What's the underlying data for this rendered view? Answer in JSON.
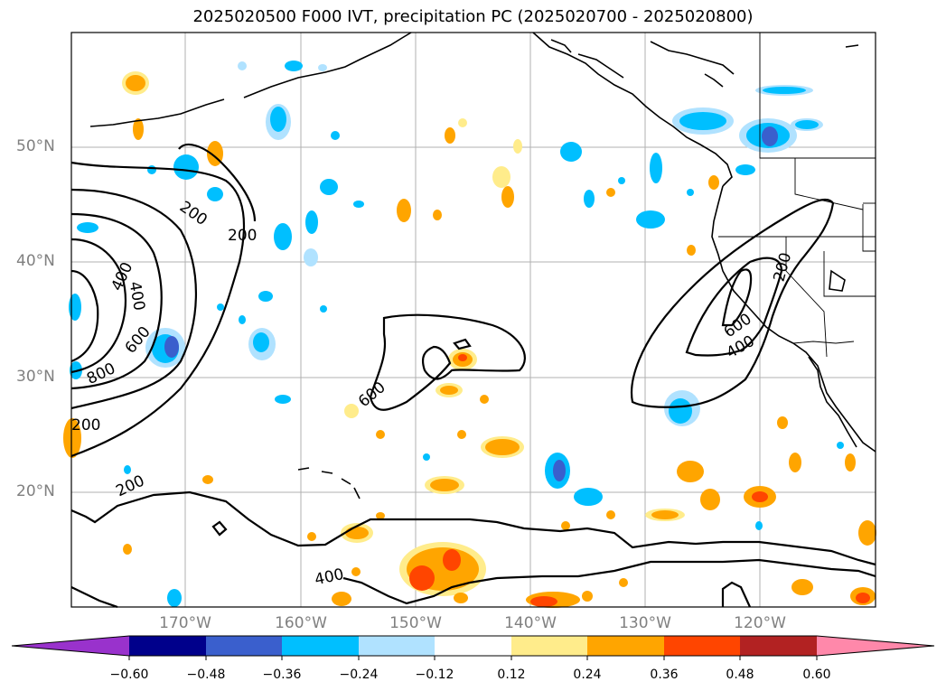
{
  "title": "2025020500 F000 IVT, precipitation PC (2025020700 - 2025020800)",
  "lat_labels": [
    "50°N",
    "40°N",
    "30°N",
    "20°N"
  ],
  "lon_labels": [
    "170°W",
    "160°W",
    "150°W",
    "140°W",
    "130°W",
    "120°W"
  ],
  "contour_labels": [
    "200",
    "200",
    "200",
    "400",
    "400",
    "400",
    "600",
    "600",
    "600",
    "800",
    "200",
    "200",
    "400"
  ],
  "colorbar": {
    "ticks": [
      "−0.60",
      "−0.48",
      "−0.36",
      "−0.24",
      "−0.12",
      "0.12",
      "0.24",
      "0.36",
      "0.48",
      "0.60"
    ],
    "colors": [
      "#9932cc",
      "#00008b",
      "#3a5fcd",
      "#00bfff",
      "#b0e2ff",
      "#ffffff",
      "#ffec8b",
      "#ffa500",
      "#ff4500",
      "#b22222",
      "#ff88aa"
    ]
  }
}
